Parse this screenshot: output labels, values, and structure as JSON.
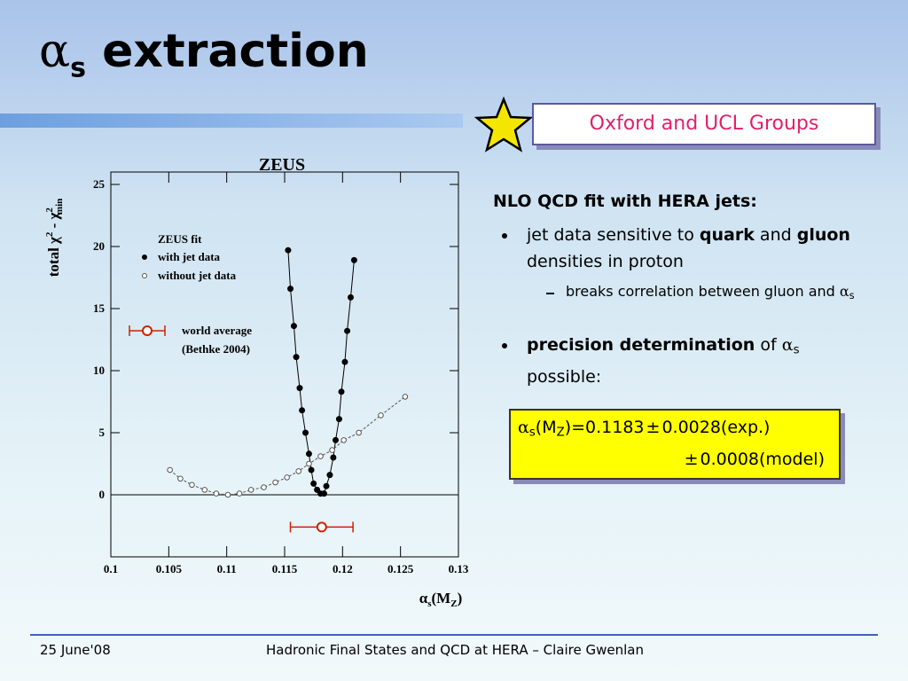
{
  "title": {
    "symbol": "α",
    "subscript": "s",
    "text": " extraction"
  },
  "badge": "Oxford and UCL Groups",
  "chart_data": {
    "type": "scatter",
    "title": "ZEUS",
    "x_label": [
      "α",
      "s",
      "(M",
      "Z",
      ")"
    ],
    "y_label": [
      "total χ",
      "2",
      " - χ",
      "2",
      "min"
    ],
    "xlim": [
      0.1,
      0.13
    ],
    "ylim": [
      -5,
      26
    ],
    "xticks": [
      0.1,
      0.105,
      0.11,
      0.115,
      0.12,
      0.125,
      0.13
    ],
    "yticks": [
      0,
      5,
      10,
      15,
      20,
      25
    ],
    "legend_title": "ZEUS fit",
    "series": [
      {
        "name": "with jet data",
        "color": "#000000",
        "filled": true,
        "x": [
          0.1153,
          0.1155,
          0.1158,
          0.116,
          0.1163,
          0.1165,
          0.1168,
          0.1171,
          0.1173,
          0.1175,
          0.1178,
          0.1181,
          0.1184,
          0.1186,
          0.1189,
          0.1192,
          0.1194,
          0.1197,
          0.1199,
          0.1202,
          0.1204,
          0.1207,
          0.121
        ],
        "values": [
          19.7,
          16.6,
          13.6,
          11.1,
          8.6,
          6.8,
          5.0,
          3.3,
          2.0,
          0.9,
          0.4,
          0.1,
          0.1,
          0.7,
          1.6,
          3.0,
          4.4,
          6.1,
          8.3,
          10.7,
          13.2,
          15.9,
          18.9
        ]
      },
      {
        "name": "without jet data",
        "color": "#555555",
        "filled": false,
        "x": [
          0.1051,
          0.106,
          0.107,
          0.1081,
          0.1091,
          0.1101,
          0.1111,
          0.1121,
          0.1132,
          0.1142,
          0.1152,
          0.1162,
          0.1171,
          0.1181,
          0.1191,
          0.1201,
          0.1214,
          0.1233,
          0.1254
        ],
        "values": [
          2.0,
          1.3,
          0.8,
          0.4,
          0.1,
          0.0,
          0.1,
          0.4,
          0.6,
          1.0,
          1.4,
          1.9,
          2.5,
          3.1,
          3.6,
          4.4,
          5.0,
          6.4,
          7.9
        ]
      }
    ],
    "world_average": {
      "name": "world average",
      "note": "(Bethke 2004)",
      "color": "#cc2200",
      "x": 0.1182,
      "error": 0.0027,
      "y": -2.6
    }
  },
  "content": {
    "heading": "NLO QCD fit with HERA jets:",
    "bullet1": [
      "jet data sensitive to ",
      "quark",
      " and ",
      "gluon",
      " densities in proton"
    ],
    "sub": [
      "breaks correlation between gluon and ",
      "α",
      "s"
    ],
    "bullet2": [
      "precision determination",
      " of ",
      "α",
      "s",
      " possible:"
    ]
  },
  "result": {
    "line1": [
      "α",
      "s",
      "(M",
      "Z",
      ")=0.1183",
      "±",
      "0.0028(exp.)"
    ],
    "line2": [
      "±",
      "0.0008(model)"
    ]
  },
  "footer": {
    "date": "25 June'08",
    "text": "Hadronic Final States and QCD at HERA – Claire Gwenlan"
  }
}
